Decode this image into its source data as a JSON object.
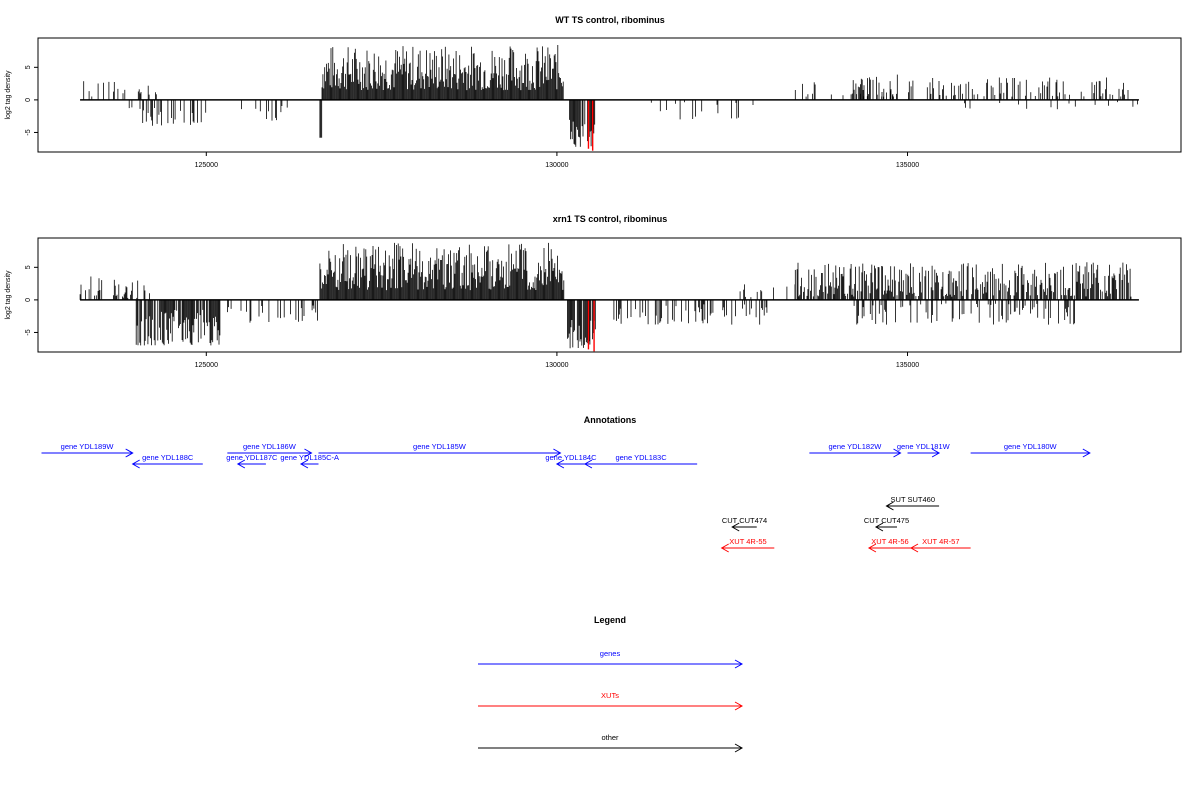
{
  "chart_data": [
    {
      "type": "bar",
      "title": "WT TS control, ribominus",
      "ylabel": "log2 tag density",
      "xlabel": "",
      "xlim": [
        122600,
        138900
      ],
      "ylim": [
        -8,
        9.5
      ],
      "xticks": [
        125000,
        130000,
        135000
      ],
      "xtick_labels": [
        "125000",
        "130000",
        "135000"
      ],
      "yticks": [
        -5,
        0,
        5
      ],
      "ytick_labels": [
        "-5",
        "0",
        "5"
      ],
      "baseline_range": [
        123200,
        138300
      ],
      "highlight_color": "#ff0000",
      "regions": [
        {
          "start": 123200,
          "end": 123800,
          "min": 0.5,
          "max": 3.2,
          "density": 0.25,
          "seed": 1
        },
        {
          "start": 123800,
          "end": 124300,
          "min": 0.8,
          "max": 3.0,
          "density": 0.3,
          "seed": 2
        },
        {
          "start": 123900,
          "end": 125000,
          "min": -4.0,
          "max": -1.0,
          "density": 0.35,
          "seed": 3
        },
        {
          "start": 125500,
          "end": 126100,
          "min": -3.2,
          "max": -0.5,
          "density": 0.15,
          "seed": 4
        },
        {
          "start": 126000,
          "end": 126600,
          "min": -2.0,
          "max": -0.5,
          "density": 0.1,
          "seed": 5
        },
        {
          "start": 126620,
          "end": 126650,
          "min": -5.8,
          "max": -5.8,
          "density": 1,
          "seed": 6
        },
        {
          "start": 126650,
          "end": 130100,
          "min": 1.5,
          "max": 8.5,
          "density": 1,
          "seed": 7
        },
        {
          "start": 130180,
          "end": 130550,
          "min": -7.5,
          "max": -2.5,
          "density": 0.8,
          "seed": 8
        },
        {
          "start": 131000,
          "end": 132800,
          "min": -3.0,
          "max": -0.3,
          "density": 0.12,
          "seed": 9
        },
        {
          "start": 133400,
          "end": 134800,
          "min": 0.5,
          "max": 3.0,
          "density": 0.2,
          "seed": 10
        },
        {
          "start": 134200,
          "end": 134900,
          "min": 0.8,
          "max": 4.0,
          "density": 0.45,
          "seed": 11
        },
        {
          "start": 135000,
          "end": 138200,
          "min": 0.5,
          "max": 3.5,
          "density": 0.28,
          "seed": 12
        },
        {
          "start": 135300,
          "end": 138300,
          "min": -1.5,
          "max": -0.3,
          "density": 0.05,
          "seed": 13
        }
      ],
      "highlight_bars": [
        {
          "x": 130450,
          "y": -7.5
        },
        {
          "x": 130510,
          "y": -7.8
        }
      ]
    },
    {
      "type": "bar",
      "title": "xrn1 TS control, ribominus",
      "ylabel": "log2 tag density",
      "xlabel": "",
      "xlim": [
        122600,
        138900
      ],
      "ylim": [
        -8,
        9.5
      ],
      "xticks": [
        125000,
        130000,
        135000
      ],
      "xtick_labels": [
        "125000",
        "130000",
        "135000"
      ],
      "yticks": [
        -5,
        0,
        5
      ],
      "ytick_labels": [
        "-5",
        "0",
        "5"
      ],
      "baseline_range": [
        123200,
        138300
      ],
      "highlight_color": "#ff0000",
      "regions": [
        {
          "start": 123200,
          "end": 124200,
          "min": 0.3,
          "max": 3.6,
          "density": 0.35,
          "seed": 21
        },
        {
          "start": 124000,
          "end": 125200,
          "min": -7.0,
          "max": -1.5,
          "density": 0.8,
          "seed": 22
        },
        {
          "start": 125200,
          "end": 126600,
          "min": -3.5,
          "max": -0.5,
          "density": 0.3,
          "seed": 23
        },
        {
          "start": 126620,
          "end": 130100,
          "min": 1.5,
          "max": 8.8,
          "density": 1,
          "seed": 24
        },
        {
          "start": 130150,
          "end": 130550,
          "min": -7.5,
          "max": -3.0,
          "density": 0.85,
          "seed": 25
        },
        {
          "start": 130800,
          "end": 133000,
          "min": -3.8,
          "max": -0.5,
          "density": 0.35,
          "seed": 26
        },
        {
          "start": 132600,
          "end": 133400,
          "min": 0.3,
          "max": 2.5,
          "density": 0.2,
          "seed": 27
        },
        {
          "start": 133400,
          "end": 138200,
          "min": 0.5,
          "max": 5.8,
          "density": 0.75,
          "seed": 28
        },
        {
          "start": 134200,
          "end": 137400,
          "min": -3.8,
          "max": -0.5,
          "density": 0.3,
          "seed": 29
        }
      ],
      "highlight_bars": [
        {
          "x": 130450,
          "y": -7.6
        },
        {
          "x": 130530,
          "y": -7.9
        }
      ]
    }
  ],
  "annotations": {
    "title": "Annotations",
    "xlim": [
      122600,
      138900
    ],
    "features": [
      {
        "label": "gene YDL189W",
        "start": 122650,
        "end": 123950,
        "dir": 1,
        "color": "#0000ff",
        "row": 0
      },
      {
        "label": "gene YDL188C",
        "start": 123950,
        "end": 124950,
        "dir": -1,
        "color": "#0000ff",
        "row": 1
      },
      {
        "label": "gene YDL186W",
        "start": 125300,
        "end": 126500,
        "dir": 1,
        "color": "#0000ff",
        "row": 0
      },
      {
        "label": "gene YDL187C",
        "start": 125450,
        "end": 125850,
        "dir": -1,
        "color": "#0000ff",
        "row": 1
      },
      {
        "label": "gene YDL185C-A",
        "start": 126350,
        "end": 126600,
        "dir": -1,
        "color": "#0000ff",
        "row": 1
      },
      {
        "label": "gene YDL185W",
        "start": 126600,
        "end": 130050,
        "dir": 1,
        "color": "#0000ff",
        "row": 0
      },
      {
        "label": "gene YDL184C",
        "start": 130000,
        "end": 130400,
        "dir": -1,
        "color": "#0000ff",
        "row": 1
      },
      {
        "label": "gene YDL183C",
        "start": 130400,
        "end": 132000,
        "dir": -1,
        "color": "#0000ff",
        "row": 1
      },
      {
        "label": "gene YDL182W",
        "start": 133600,
        "end": 134900,
        "dir": 1,
        "color": "#0000ff",
        "row": 0
      },
      {
        "label": "gene YDL181W",
        "start": 135000,
        "end": 135450,
        "dir": 1,
        "color": "#0000ff",
        "row": 0
      },
      {
        "label": "gene YDL180W",
        "start": 135900,
        "end": 137600,
        "dir": 1,
        "color": "#0000ff",
        "row": 0
      },
      {
        "label": "SUT SUT460",
        "start": 134700,
        "end": 135450,
        "dir": -1,
        "color": "#000000",
        "row": 3
      },
      {
        "label": "CUT CUT474",
        "start": 132500,
        "end": 132850,
        "dir": -1,
        "color": "#000000",
        "row": 4
      },
      {
        "label": "CUT CUT475",
        "start": 134550,
        "end": 134850,
        "dir": -1,
        "color": "#000000",
        "row": 4
      },
      {
        "label": "XUT 4R-55",
        "start": 132350,
        "end": 133100,
        "dir": -1,
        "color": "#ff0000",
        "row": 5
      },
      {
        "label": "XUT 4R-56",
        "start": 134450,
        "end": 135050,
        "dir": -1,
        "color": "#ff0000",
        "row": 5
      },
      {
        "label": "XUT 4R-57",
        "start": 135050,
        "end": 135900,
        "dir": -1,
        "color": "#ff0000",
        "row": 5
      }
    ]
  },
  "legend": {
    "title": "Legend",
    "items": [
      {
        "label": "genes",
        "color": "#0000ff"
      },
      {
        "label": "XUTs",
        "color": "#ff0000"
      },
      {
        "label": "other",
        "color": "#000000"
      }
    ]
  }
}
